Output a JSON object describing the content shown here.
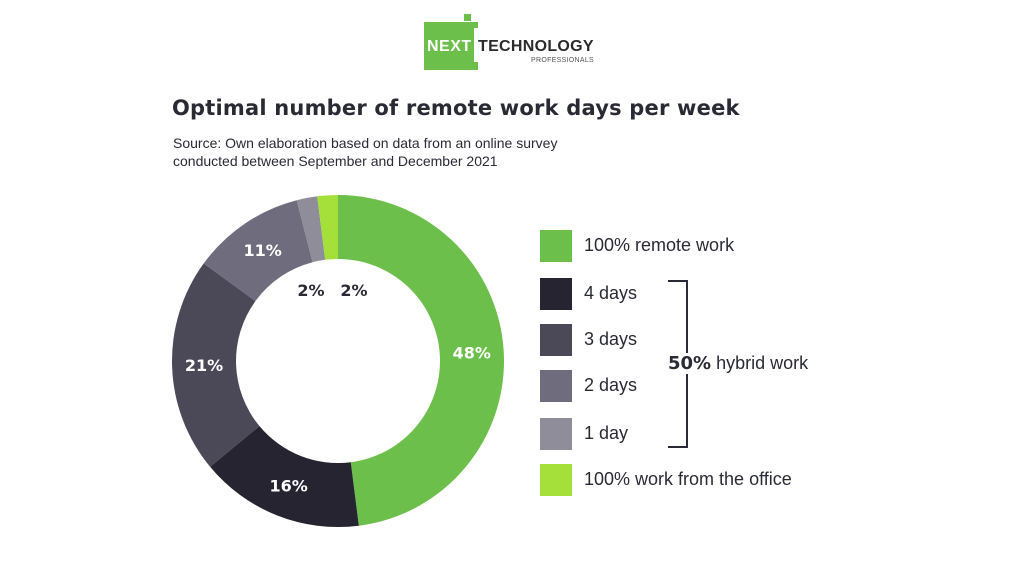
{
  "logo": {
    "next": "NEXT",
    "technology": "TECHNOLOGY",
    "professionals": "PROFESSIONALS"
  },
  "colors": {
    "remote": "#6cbf4a",
    "four_days": "#262430",
    "three_days": "#4b4958",
    "two_days": "#6f6d7d",
    "one_day": "#8f8d99",
    "office": "#a5e03a"
  },
  "chart_data": {
    "type": "pie",
    "title": "Optimal number of remote work days per week",
    "subtitle_lines": [
      "Source: Own elaboration based on data from an online survey",
      "conducted between September and December 2021"
    ],
    "donut": true,
    "slices": [
      {
        "label": "100% remote work",
        "value": 48,
        "display": "48%",
        "color": "#6cbf4a"
      },
      {
        "label": "4 days",
        "value": 16,
        "display": "16%",
        "color": "#262430"
      },
      {
        "label": "3 days",
        "value": 21,
        "display": "21%",
        "color": "#4b4958"
      },
      {
        "label": "2 days",
        "value": 11,
        "display": "11%",
        "color": "#6f6d7d"
      },
      {
        "label": "1 day",
        "value": 2,
        "display": "2%",
        "color": "#8f8d99"
      },
      {
        "label": "100% work from the office",
        "value": 2,
        "display": "2%",
        "color": "#a5e03a"
      }
    ],
    "group_annotation": {
      "value": "50%",
      "label": "hybrid work",
      "members": [
        "4 days",
        "3 days",
        "2 days",
        "1 day"
      ]
    },
    "legend_position": "right"
  }
}
